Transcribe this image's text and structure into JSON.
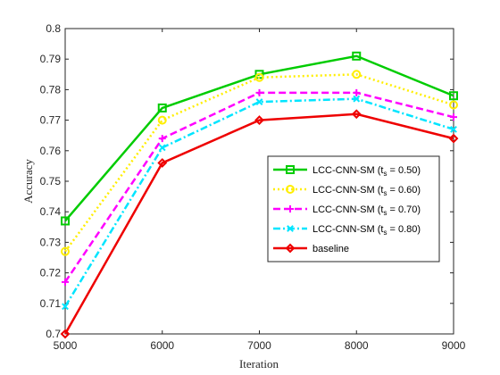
{
  "chart_data": {
    "type": "line",
    "title": "",
    "xlabel": "Iteration",
    "ylabel": "Accuracy",
    "x": [
      5000,
      6000,
      7000,
      8000,
      9000
    ],
    "xlim": [
      5000,
      9000
    ],
    "ylim": [
      0.7,
      0.8
    ],
    "xticks": [
      "5000",
      "6000",
      "7000",
      "8000",
      "9000"
    ],
    "yticks": [
      "0.7",
      "0.71",
      "0.72",
      "0.73",
      "0.74",
      "0.75",
      "0.76",
      "0.77",
      "0.78",
      "0.79",
      "0.8"
    ],
    "grid": false,
    "legend_position": "center-right",
    "series": [
      {
        "name": "LCC-CNN-SM (t_s = 0.50)",
        "label_main": "LCC-CNN-SM (t",
        "label_sub": "s",
        "label_tail": " = 0.50)",
        "values": [
          0.737,
          0.774,
          0.785,
          0.791,
          0.778
        ],
        "color": "#00cc00",
        "dash": "solid",
        "marker": "square"
      },
      {
        "name": "LCC-CNN-SM (t_s = 0.60)",
        "label_main": "LCC-CNN-SM (t",
        "label_sub": "s",
        "label_tail": " = 0.60)",
        "values": [
          0.727,
          0.77,
          0.784,
          0.785,
          0.775
        ],
        "color": "#ffee00",
        "dash": "dotted",
        "marker": "circle"
      },
      {
        "name": "LCC-CNN-SM (t_s = 0.70)",
        "label_main": "LCC-CNN-SM (t",
        "label_sub": "s",
        "label_tail": " = 0.70)",
        "values": [
          0.717,
          0.764,
          0.779,
          0.779,
          0.771
        ],
        "color": "#ff00ff",
        "dash": "dashed",
        "marker": "plus"
      },
      {
        "name": "LCC-CNN-SM (t_s = 0.80)",
        "label_main": "LCC-CNN-SM (t",
        "label_sub": "s",
        "label_tail": " = 0.80)",
        "values": [
          0.709,
          0.761,
          0.776,
          0.777,
          0.767
        ],
        "color": "#00e5ff",
        "dash": "dashdot",
        "marker": "cross"
      },
      {
        "name": "baseline",
        "label_main": "baseline",
        "label_sub": "",
        "label_tail": "",
        "values": [
          0.7,
          0.756,
          0.77,
          0.772,
          0.764
        ],
        "color": "#ee0000",
        "dash": "solid",
        "marker": "diamond"
      }
    ]
  }
}
